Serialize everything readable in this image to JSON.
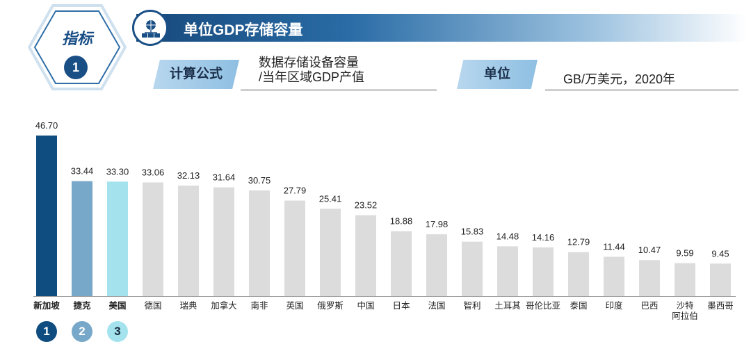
{
  "indicator": {
    "label": "指标",
    "number": "1"
  },
  "title": "单位GDP存储容量",
  "formula": {
    "label": "计算公式",
    "line1": "数据存储设备容量",
    "line2": "/当年区域GDP产值"
  },
  "unit": {
    "label": "单位",
    "value": "GB/万美元，2020年"
  },
  "ranks": [
    "1",
    "2",
    "3"
  ],
  "colors": {
    "rank1": "#0f4d80",
    "rank2": "#78a8c9",
    "rank3": "#a4e3ee",
    "other": "#dcdcdc"
  },
  "chart_data": {
    "type": "bar",
    "title": "",
    "xlabel": "",
    "ylabel": "",
    "ylim": [
      0,
      46.7
    ],
    "categories": [
      "新加坡",
      "捷克",
      "美国",
      "德国",
      "瑞典",
      "加拿大",
      "南非",
      "英国",
      "俄罗斯",
      "中国",
      "日本",
      "法国",
      "智利",
      "土耳其",
      "哥伦比亚",
      "泰国",
      "印度",
      "巴西",
      "沙特阿拉伯",
      "墨西哥"
    ],
    "category_lines": [
      [
        "新加坡"
      ],
      [
        "捷克"
      ],
      [
        "美国"
      ],
      [
        "德国"
      ],
      [
        "瑞典"
      ],
      [
        "加拿大"
      ],
      [
        "南非"
      ],
      [
        "英国"
      ],
      [
        "俄罗斯"
      ],
      [
        "中国"
      ],
      [
        "日本"
      ],
      [
        "法国"
      ],
      [
        "智利"
      ],
      [
        "土耳其"
      ],
      [
        "哥伦比亚"
      ],
      [
        "泰国"
      ],
      [
        "印度"
      ],
      [
        "巴西"
      ],
      [
        "沙特",
        "阿拉伯"
      ],
      [
        "墨西哥"
      ]
    ],
    "values": [
      46.7,
      33.44,
      33.3,
      33.06,
      32.13,
      31.64,
      30.75,
      27.79,
      25.41,
      23.52,
      18.88,
      17.98,
      15.83,
      14.48,
      14.16,
      12.79,
      11.44,
      10.47,
      9.59,
      9.45
    ],
    "value_labels": [
      "46.70",
      "33.44",
      "33.30",
      "33.06",
      "32.13",
      "31.64",
      "30.75",
      "27.79",
      "25.41",
      "23.52",
      "18.88",
      "17.98",
      "15.83",
      "14.48",
      "14.16",
      "12.79",
      "11.44",
      "10.47",
      "9.59",
      "9.45"
    ],
    "grid": false,
    "highlighted_top": 3
  }
}
